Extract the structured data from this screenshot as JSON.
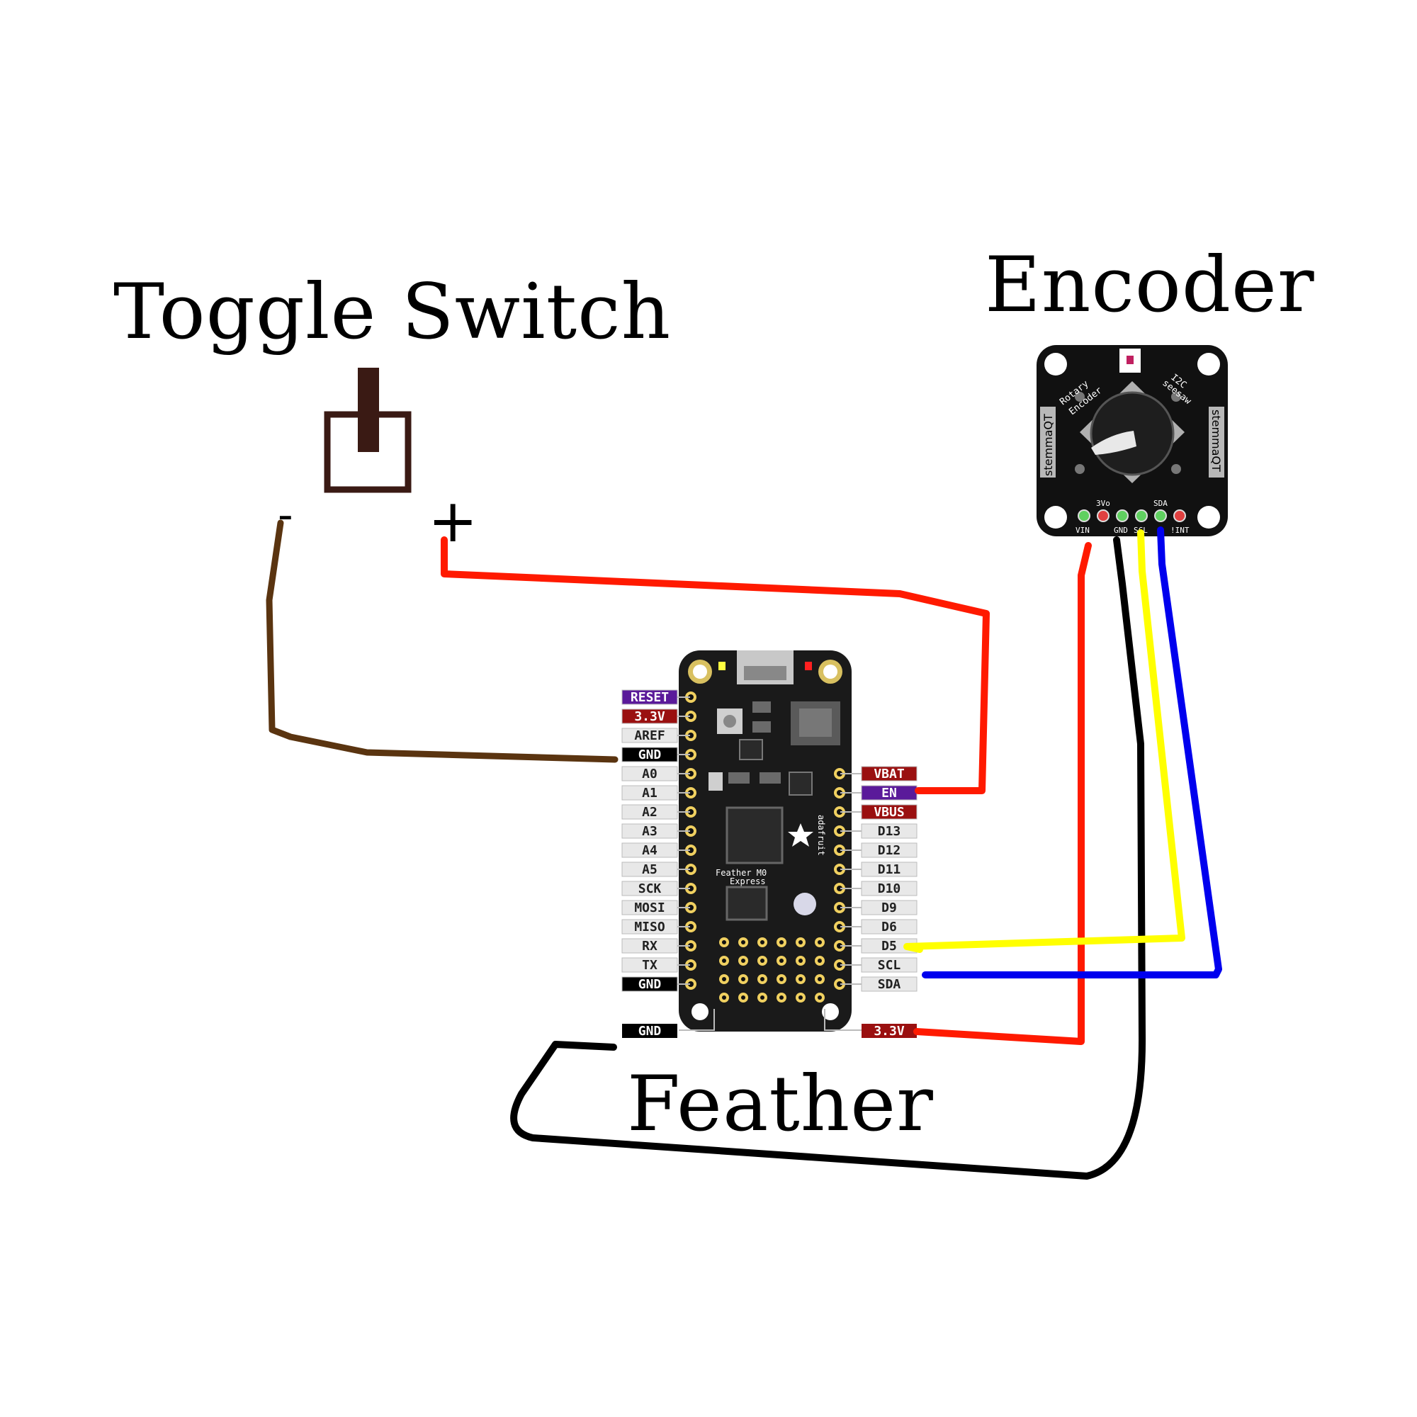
{
  "titles": {
    "toggle_switch": "Toggle Switch",
    "encoder": "Encoder",
    "feather": "Feather"
  },
  "toggle_switch": {
    "minus": "-",
    "plus": "+"
  },
  "feather_board": {
    "left_pins": [
      "RESET",
      "3.3V",
      "AREF",
      "GND",
      "A0",
      "A1",
      "A2",
      "A3",
      "A4",
      "A5",
      "SCK",
      "MOSI",
      "MISO",
      "RX",
      "TX",
      "GND"
    ],
    "right_pins": [
      "VBAT",
      "EN",
      "VBUS",
      "D13",
      "D12",
      "D11",
      "D10",
      "D9",
      "D6",
      "D5",
      "SCL",
      "SDA"
    ],
    "bottom_left_pin": "GND",
    "bottom_right_pin": "3.3V",
    "silkscreen_name": "Feather M0",
    "silkscreen_sub": "Express",
    "silkscreen_brand": "adafruit"
  },
  "encoder_board": {
    "label_line1": "Rotary",
    "label_line2": "Encoder",
    "label_i2c": "I2C",
    "label_seesaw": "seesaw",
    "stemma_left": "stemmaQT",
    "stemma_right": "stemmaQT",
    "pins_top": [
      "3Vo",
      "SDA"
    ],
    "pins_bottom": [
      "VIN",
      "GND",
      "SCL",
      "!INT"
    ]
  },
  "colors": {
    "wire_red": "#ff1a00",
    "wire_brown": "#5a3410",
    "wire_black": "#000000",
    "wire_yellow": "#ffff00",
    "wire_blue": "#0000ee",
    "switch_dark": "#3a1a14",
    "pin_purple": "#5a1a9a",
    "pin_red": "#9a1010",
    "pin_black": "#000000",
    "pin_light": "#e8e8e8"
  }
}
